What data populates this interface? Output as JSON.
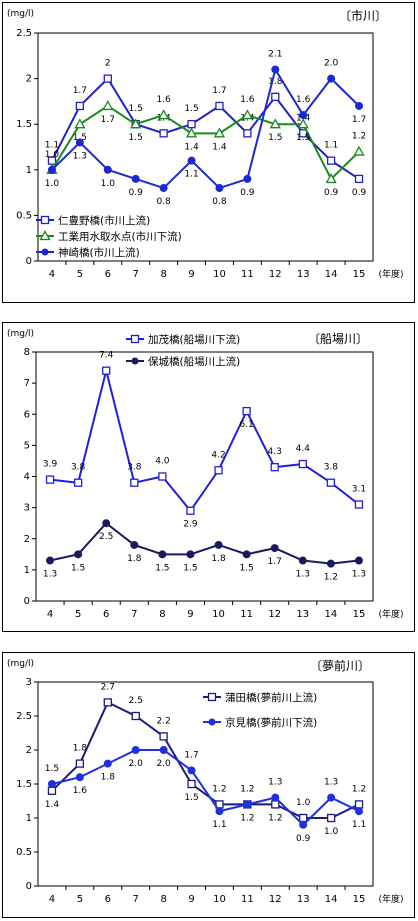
{
  "chart_data": [
    {
      "type": "line",
      "title": "〔市川〕",
      "ylabel": "(mg/l)",
      "xlabel": "(年度)",
      "ylim": [
        0,
        2.5
      ],
      "yticks": [
        "0",
        "0.5",
        "1",
        "1.5",
        "2",
        "2.5"
      ],
      "categories": [
        "4",
        "5",
        "6",
        "7",
        "8",
        "9",
        "10",
        "11",
        "12",
        "13",
        "14",
        "15"
      ],
      "legend_position": "bottom-left",
      "series": [
        {
          "name": "仁豊野橋(市川上流)",
          "color": "#2020c8",
          "marker": "square-open",
          "values": [
            1.1,
            1.7,
            2.0,
            1.5,
            1.4,
            1.5,
            1.7,
            1.4,
            1.8,
            1.4,
            1.1,
            0.9
          ],
          "labels": [
            "1.1",
            "1.7",
            "2",
            "1.5",
            "1.4",
            "1.5",
            "1.7",
            "1.4",
            "1.8",
            "1.4",
            "1.1",
            "0.9"
          ]
        },
        {
          "name": "工業用水取水点(市川下流)",
          "color": "#1a8a1a",
          "marker": "triangle-open",
          "values": [
            1.0,
            1.5,
            1.7,
            1.5,
            1.6,
            1.4,
            1.4,
            1.6,
            1.5,
            1.5,
            0.9,
            1.2
          ],
          "labels": [
            "1.0",
            "1.5",
            "1.7",
            "1.5",
            "1.6",
            "1.4",
            "1.4",
            "1.6",
            "1.5",
            "1.5",
            "0.9",
            "1.2"
          ]
        },
        {
          "name": "神崎橋(市川上流)",
          "color": "#1a2ad0",
          "marker": "circle-filled",
          "values": [
            1.0,
            1.3,
            1.0,
            0.9,
            0.8,
            1.1,
            0.8,
            0.9,
            2.1,
            1.6,
            2.0,
            1.7
          ],
          "labels": [
            "1.0",
            "1.3",
            "1.0",
            "0.9",
            "0.8",
            "1.1",
            "0.8",
            "0.9",
            "2.1",
            "1.6",
            "2.0",
            "1.7"
          ]
        }
      ]
    },
    {
      "type": "line",
      "title": "〔船場川〕",
      "ylabel": "(mg/l)",
      "xlabel": "(年度)",
      "ylim": [
        0,
        8
      ],
      "yticks": [
        "0",
        "1",
        "2",
        "3",
        "4",
        "5",
        "6",
        "7",
        "8"
      ],
      "categories": [
        "4",
        "5",
        "6",
        "7",
        "8",
        "9",
        "10",
        "11",
        "12",
        "13",
        "14",
        "15"
      ],
      "legend_position": "top-center",
      "series": [
        {
          "name": "加茂橋(船場川下流)",
          "color": "#2020d8",
          "marker": "square-open",
          "values": [
            3.9,
            3.8,
            7.4,
            3.8,
            4.0,
            2.9,
            4.2,
            6.1,
            4.3,
            4.4,
            3.8,
            3.1
          ],
          "labels": [
            "3.9",
            "3.8",
            "7.4",
            "3.8",
            "4.0",
            "2.9",
            "4.2",
            "6.1",
            "4.3",
            "4.4",
            "3.8",
            "3.1"
          ]
        },
        {
          "name": "保城橋(船場川上流)",
          "color": "#1a1a60",
          "marker": "circle-filled",
          "values": [
            1.3,
            1.5,
            2.5,
            1.8,
            1.5,
            1.5,
            1.8,
            1.5,
            1.7,
            1.3,
            1.2,
            1.3
          ],
          "labels": [
            "1.3",
            "1.5",
            "2.5",
            "1.8",
            "1.5",
            "1.5",
            "1.8",
            "1.5",
            "1.7",
            "1.3",
            "1.2",
            "1.3"
          ]
        }
      ]
    },
    {
      "type": "line",
      "title": "〔夢前川〕",
      "ylabel": "(mg/l)",
      "xlabel": "(年度)",
      "ylim": [
        0,
        3
      ],
      "yticks": [
        "0",
        "0.5",
        "1",
        "1.5",
        "2",
        "2.5",
        "3"
      ],
      "categories": [
        "4",
        "5",
        "6",
        "7",
        "8",
        "9",
        "10",
        "11",
        "12",
        "13",
        "14",
        "15"
      ],
      "legend_position": "top-right",
      "series": [
        {
          "name": "蒲田橋(夢前川上流)",
          "color": "#1a1a80",
          "marker": "square-open",
          "values": [
            1.4,
            1.8,
            2.7,
            2.5,
            2.2,
            1.5,
            1.2,
            1.2,
            1.2,
            1.0,
            1.0,
            1.2
          ],
          "labels": [
            "1.4",
            "1.8",
            "2.7",
            "2.5",
            "2.2",
            "1.5",
            "1.2",
            "1.2",
            "1.2",
            "1.0",
            "1.0",
            "1.2"
          ]
        },
        {
          "name": "京見橋(夢前川下流)",
          "color": "#2030e0",
          "marker": "circle-filled",
          "values": [
            1.5,
            1.6,
            1.8,
            2.0,
            2.0,
            1.7,
            1.1,
            1.2,
            1.3,
            0.9,
            1.3,
            1.1
          ],
          "labels": [
            "1.5",
            "1.6",
            "1.8",
            "2.0",
            "2.0",
            "1.7",
            "1.1",
            "1.2",
            "1.3",
            "0.9",
            "1.3",
            "1.1"
          ]
        }
      ]
    }
  ]
}
